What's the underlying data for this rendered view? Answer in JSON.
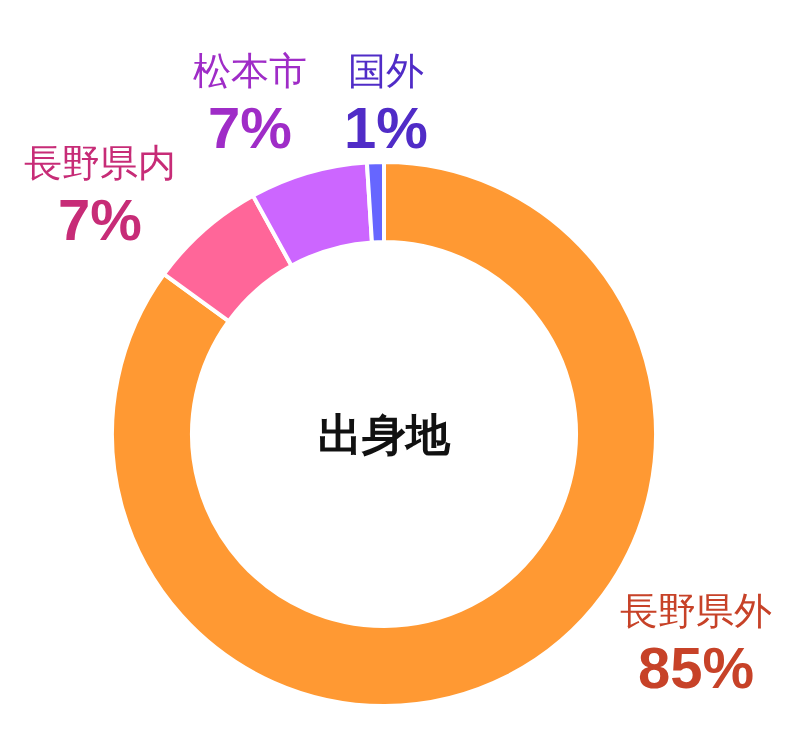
{
  "chart_data": {
    "type": "donut",
    "title": "出身地",
    "categories": [
      "長野県外",
      "長野県内",
      "松本市",
      "国外"
    ],
    "values": [
      85,
      7,
      7,
      1
    ],
    "value_labels": [
      "85%",
      "7%",
      "7%",
      "1%"
    ],
    "colors": [
      "#ff9933",
      "#ff6699",
      "#cc66ff",
      "#6666ff"
    ]
  }
}
